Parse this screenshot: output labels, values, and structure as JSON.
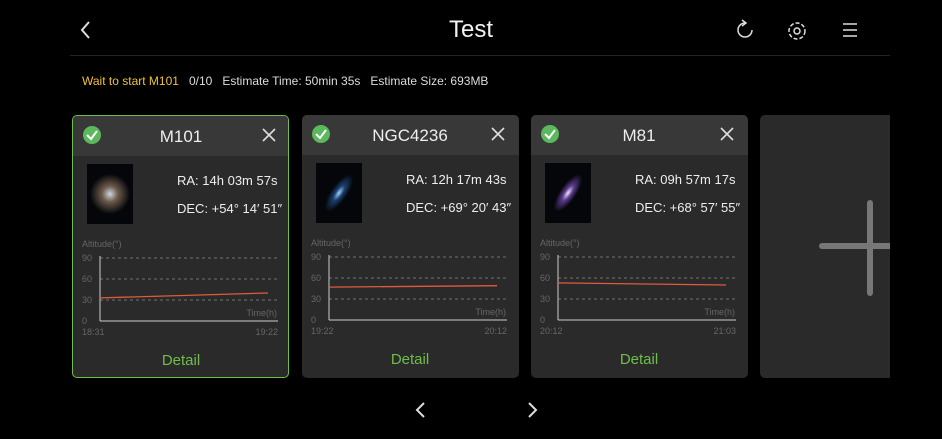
{
  "header": {
    "title": "Test"
  },
  "status": {
    "state": "Wait to start M101",
    "progress": "0/10",
    "time": "Estimate Time: 50min 35s",
    "size": "Estimate Size: 693MB"
  },
  "cards": [
    {
      "name": "M101",
      "ra": "RA: 14h 03m 57s",
      "dec": "DEC: +54° 14′ 51″",
      "y_label": "Altitude(°)",
      "x_label": "Time(h)",
      "ylim": [
        0,
        90
      ],
      "yticks": [
        0,
        30,
        60,
        90
      ],
      "start": "18:31",
      "end": "19:22",
      "altitude": [
        33,
        40
      ],
      "detail": "Detail",
      "selected": true
    },
    {
      "name": "NGC4236",
      "ra": "RA: 12h 17m 43s",
      "dec": "DEC: +69° 20′ 43″",
      "y_label": "Altitude(°)",
      "x_label": "Time(h)",
      "ylim": [
        0,
        90
      ],
      "yticks": [
        0,
        30,
        60,
        90
      ],
      "start": "19:22",
      "end": "20:12",
      "altitude": [
        47,
        49
      ],
      "detail": "Detail",
      "selected": false
    },
    {
      "name": "M81",
      "ra": "RA: 09h 57m 17s",
      "dec": "DEC: +68° 57′ 55″",
      "y_label": "Altitude(°)",
      "x_label": "Time(h)",
      "ylim": [
        0,
        90
      ],
      "yticks": [
        0,
        30,
        60,
        90
      ],
      "start": "20:12",
      "end": "21:03",
      "altitude": [
        53,
        50
      ],
      "detail": "Detail",
      "selected": false
    }
  ]
}
